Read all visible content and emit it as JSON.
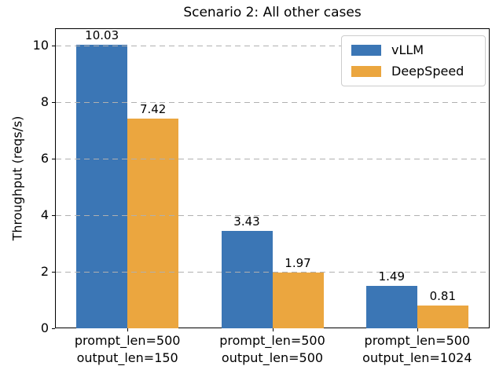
{
  "chart_data": {
    "type": "bar",
    "title": "Scenario 2: All other cases",
    "ylabel": "Throughput (reqs/s)",
    "xlabel": "",
    "categories": [
      [
        "prompt_len=500",
        "output_len=150"
      ],
      [
        "prompt_len=500",
        "output_len=500"
      ],
      [
        "prompt_len=500",
        "output_len=1024"
      ]
    ],
    "series": [
      {
        "name": "vLLM",
        "color": "#3b76b5",
        "values": [
          10.03,
          3.43,
          1.49
        ],
        "bar_labels": [
          "10.03",
          "3.43",
          "1.49"
        ]
      },
      {
        "name": "DeepSpeed",
        "color": "#eba63f",
        "values": [
          7.42,
          1.97,
          0.81
        ],
        "bar_labels": [
          "7.42",
          "1.97",
          "0.81"
        ]
      }
    ],
    "yticks": [
      0,
      2,
      4,
      6,
      8,
      10
    ],
    "ylim": [
      0,
      10.6
    ],
    "grid": {
      "axis": "y",
      "style": "dashed",
      "color": "#b0b0b0",
      "above_bars": true
    },
    "legend": {
      "position": "upper right",
      "entries": [
        "vLLM",
        "DeepSpeed"
      ]
    }
  }
}
